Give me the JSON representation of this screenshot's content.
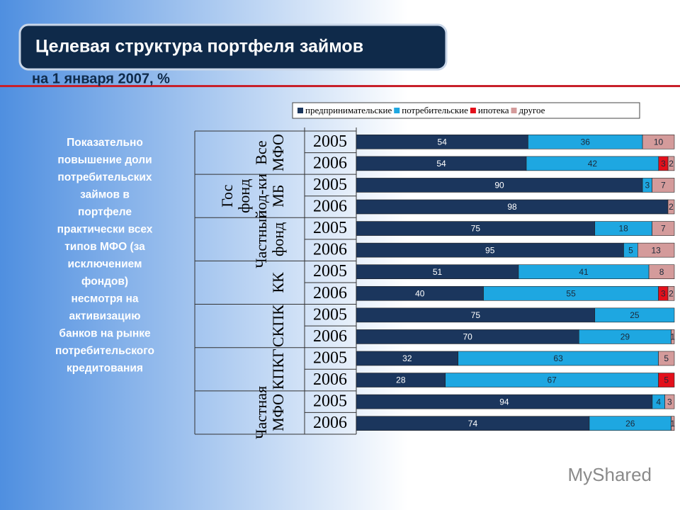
{
  "header": {
    "title": "Целевая структура портфеля займов",
    "subtitle": "на 1 января 2007, %"
  },
  "side_text": [
    "Показательно",
    "повышение доли",
    "потребительских",
    "займов в",
    "портфеле",
    "практически всех",
    "типов МФО (за",
    "исключением",
    "фондов)",
    "несмотря на",
    "активизацию",
    "банков на рынке",
    "потребительского",
    "кредитования"
  ],
  "logo": "MyShared",
  "chart_data": {
    "type": "bar",
    "orientation": "horizontal",
    "stacked": "percent",
    "groups": [
      "Все МФО",
      "Гос фонд под-ки МБ",
      "Частный фонд",
      "КК",
      "СКПК",
      "КПКГ",
      "Частная МФО"
    ],
    "categories": [
      "2005",
      "2006",
      "2005",
      "2006",
      "2005",
      "2006",
      "2005",
      "2006",
      "2005",
      "2006",
      "2005",
      "2006",
      "2005",
      "2006"
    ],
    "series": [
      {
        "name": "предпринимательские",
        "color": "#1b365d",
        "values": [
          54,
          54,
          90,
          98,
          75,
          95,
          51,
          40,
          75,
          70,
          32,
          28,
          94,
          74
        ]
      },
      {
        "name": "потребительские",
        "color": "#1ea7e1",
        "values": [
          36,
          42,
          3,
          null,
          18,
          5,
          41,
          55,
          25,
          29,
          63,
          67,
          4,
          26
        ]
      },
      {
        "name": "ипотека",
        "color": "#e3101b",
        "values": [
          null,
          3,
          null,
          null,
          null,
          null,
          null,
          3,
          null,
          null,
          null,
          5,
          null,
          null
        ]
      },
      {
        "name": "другое",
        "color": "#d49b9b",
        "values": [
          10,
          2,
          7,
          2,
          7,
          13,
          8,
          2,
          null,
          1,
          5,
          null,
          3,
          1
        ]
      }
    ],
    "legend": "top"
  }
}
